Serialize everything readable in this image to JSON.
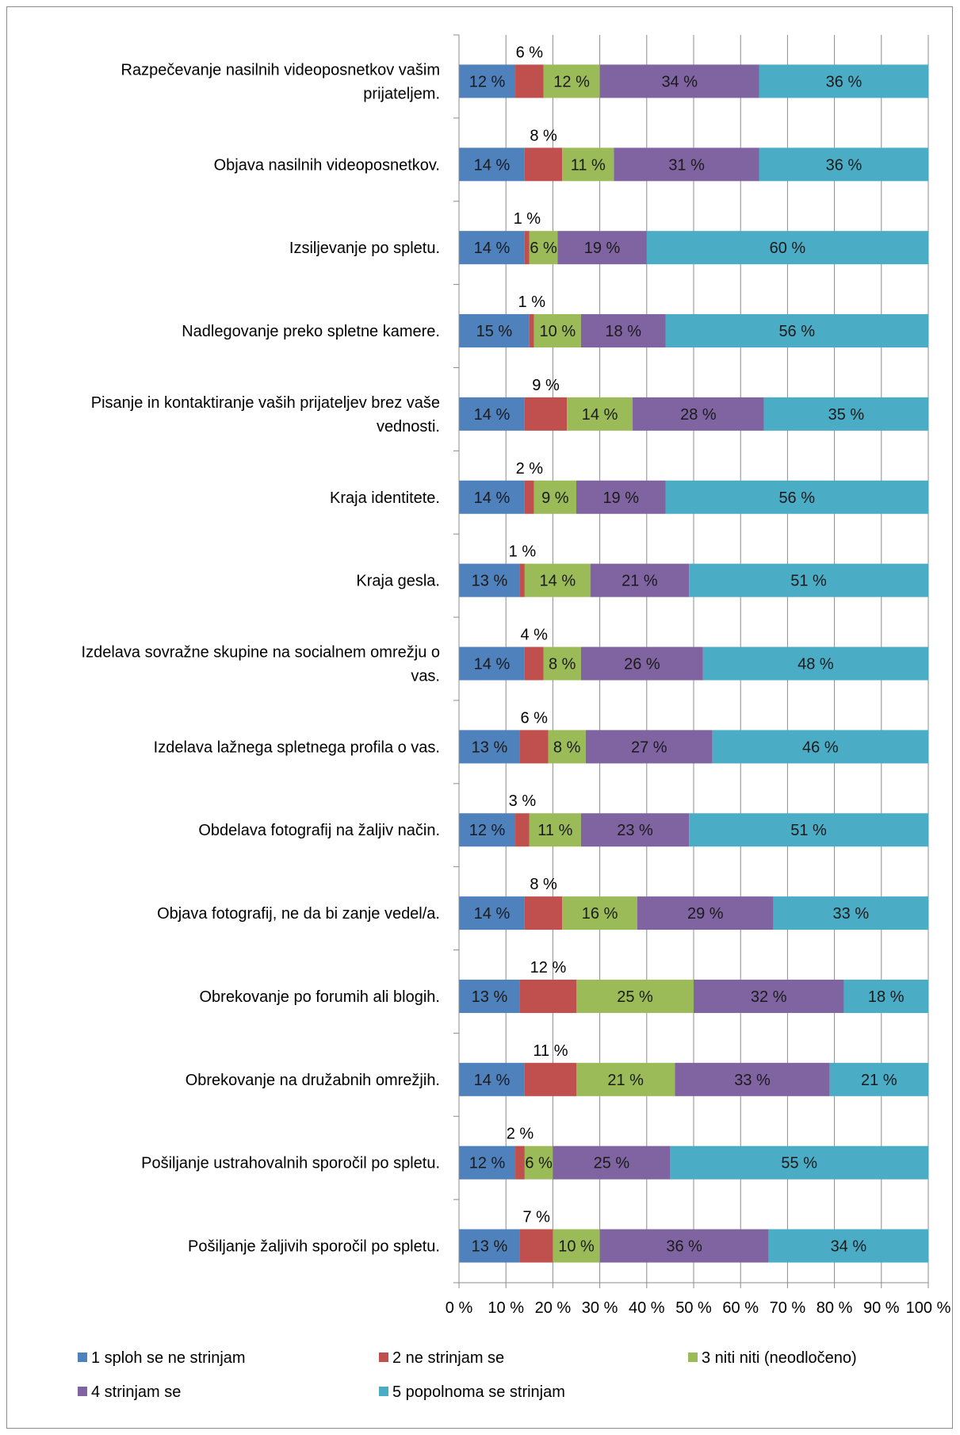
{
  "chart_data": {
    "type": "bar",
    "orientation": "horizontal",
    "stacked": "percent",
    "categories": [
      [
        "Razpečevanje nasilnih videoposnetkov vašim",
        "prijateljem."
      ],
      [
        "Objava nasilnih videoposnetkov."
      ],
      [
        "Izsiljevanje po spletu."
      ],
      [
        "Nadlegovanje preko spletne kamere."
      ],
      [
        "Pisanje in kontaktiranje vaših prijateljev brez vaše",
        "vednosti."
      ],
      [
        "Kraja identitete."
      ],
      [
        "Kraja gesla."
      ],
      [
        "Izdelava sovražne skupine na socialnem omrežju o",
        "vas."
      ],
      [
        "Izdelava lažnega spletnega profila o vas."
      ],
      [
        "Obdelava fotografij na žaljiv način."
      ],
      [
        "Objava fotografij, ne da bi zanje vedel/a."
      ],
      [
        "Obrekovanje po forumih ali blogih."
      ],
      [
        "Obrekovanje na družabnih omrežjih."
      ],
      [
        "Pošiljanje ustrahovalnih sporočil po spletu."
      ],
      [
        "Pošiljanje žaljivih sporočil po spletu."
      ]
    ],
    "series": [
      {
        "name": "1 sploh se ne strinjam",
        "color": "#4F81BD",
        "values": [
          12,
          14,
          14,
          15,
          14,
          14,
          13,
          14,
          13,
          12,
          14,
          13,
          14,
          12,
          13
        ],
        "labels": [
          "12 %",
          "14 %",
          "14 %",
          "15 %",
          "14 %",
          "14 %",
          "13 %",
          "14 %",
          "13 %",
          "12 %",
          "14 %",
          "13 %",
          "14 %",
          "12 %",
          "13 %"
        ]
      },
      {
        "name": "2 ne strinjam se",
        "color": "#C0504D",
        "values": [
          6,
          8,
          1,
          1,
          9,
          2,
          1,
          4,
          6,
          3,
          8,
          12,
          11,
          2,
          7
        ],
        "labels": [
          "6 %",
          "8 %",
          "1 %",
          "1 %",
          "9 %",
          "2 %",
          "1 %",
          "4 %",
          "6 %",
          "3 %",
          "8 %",
          "12 %",
          "11 %",
          "2 %",
          "7 %"
        ]
      },
      {
        "name": "3 niti niti (neodločeno)",
        "color": "#9BBB59",
        "values": [
          12,
          11,
          6,
          10,
          14,
          9,
          14,
          8,
          8,
          11,
          16,
          25,
          21,
          6,
          10
        ],
        "labels": [
          "12 %",
          "11 %",
          "6 %",
          "10 %",
          "14 %",
          "9 %",
          "14 %",
          "8 %",
          "8 %",
          "11 %",
          "16 %",
          "25 %",
          "21 %",
          "6 %",
          "10 %"
        ]
      },
      {
        "name": "4 strinjam se",
        "color": "#8064A2",
        "values": [
          34,
          31,
          19,
          18,
          28,
          19,
          21,
          26,
          27,
          23,
          29,
          32,
          33,
          25,
          36
        ],
        "labels": [
          "34 %",
          "31 %",
          "19 %",
          "18 %",
          "28 %",
          "19 %",
          "21 %",
          "26 %",
          "27 %",
          "23 %",
          "29 %",
          "32 %",
          "33 %",
          "25 %",
          "36 %"
        ]
      },
      {
        "name": "5 popolnoma se strinjam",
        "color": "#4BACC6",
        "values": [
          36,
          36,
          60,
          56,
          35,
          56,
          51,
          48,
          46,
          51,
          33,
          18,
          21,
          55,
          34
        ],
        "labels": [
          "36 %",
          "36 %",
          "60 %",
          "56 %",
          "35 %",
          "56 %",
          "51 %",
          "48 %",
          "46 %",
          "51 %",
          "33 %",
          "18 %",
          "21 %",
          "55 %",
          "34 %"
        ]
      }
    ],
    "xlim": [
      0,
      100
    ],
    "x_ticks": [
      "0 %",
      "10 %",
      "20 %",
      "30 %",
      "40 %",
      "50 %",
      "60 %",
      "70 %",
      "80 %",
      "90 %",
      "100 %"
    ],
    "grid": true,
    "legend_position": "bottom",
    "title": "",
    "xlabel": "",
    "ylabel": ""
  }
}
